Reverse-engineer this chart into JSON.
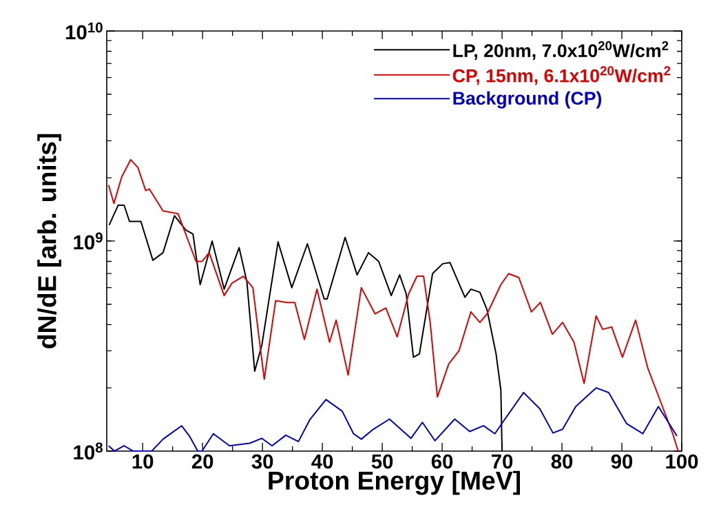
{
  "chart_data": {
    "type": "line",
    "xlabel": "Proton Energy [MeV]",
    "ylabel": "dN/dE [arb. units]",
    "xlim": [
      4,
      100
    ],
    "ylim": [
      100000000,
      10000000000
    ],
    "log": "y",
    "xticks": [
      10,
      20,
      30,
      40,
      50,
      60,
      70,
      80,
      90,
      100
    ],
    "yticks": [
      {
        "value": 100000000,
        "label": "10$^{8}$"
      },
      {
        "value": 1000000000,
        "label": "10$^{9}$"
      },
      {
        "value": 10000000000,
        "label": "10$^{10}$"
      }
    ],
    "legend": "top right",
    "marker": "none",
    "line_style": "solid",
    "series": [
      {
        "name": "LP, 20nm, 7.0x10$^{20}$W/cm$^{2}$",
        "color": "#000000",
        "x": [
          4.4,
          5.9,
          6.9,
          7.8,
          9.7,
          11.7,
          13.4,
          15.3,
          17.2,
          18.4,
          19.6,
          21.6,
          23.6,
          26.1,
          27.4,
          28.7,
          29.9,
          32.6,
          34.9,
          37.5,
          40.3,
          40.8,
          43.8,
          45.8,
          47.7,
          49.4,
          51.5,
          52.9,
          54.0,
          55.2,
          56.2,
          57.3,
          58.4,
          60.1,
          61.3,
          63.8,
          64.8,
          66.3,
          67.5,
          69.0,
          69.8,
          70.0
        ],
        "values": [
          1190000000.0,
          1480000000.0,
          1480000000.0,
          1240000000.0,
          1240000000.0,
          810000000.0,
          880000000.0,
          1320000000.0,
          1130000000.0,
          1080000000.0,
          620000000.0,
          1000000000.0,
          590000000.0,
          930000000.0,
          640000000.0,
          240000000.0,
          320000000.0,
          990000000.0,
          600000000.0,
          970000000.0,
          530000000.0,
          530000000.0,
          1040000000.0,
          690000000.0,
          880000000.0,
          800000000.0,
          550000000.0,
          690000000.0,
          560000000.0,
          280000000.0,
          290000000.0,
          450000000.0,
          700000000.0,
          780000000.0,
          790000000.0,
          540000000.0,
          590000000.0,
          570000000.0,
          470000000.0,
          290000000.0,
          195000000.0,
          100000000.0
        ]
      },
      {
        "name": "CP, 15nm, 6.1x10$^{20}$W/cm$^{2}$",
        "color": "#e00000",
        "x": [
          4.3,
          5.2,
          6.5,
          8.0,
          9.2,
          10.5,
          11.1,
          13.4,
          15.9,
          18.9,
          19.9,
          21.1,
          23.6,
          24.9,
          26.8,
          28.4,
          29.3,
          30.3,
          32.2,
          34.1,
          35.4,
          37.0,
          39.1,
          41.2,
          42.3,
          44.3,
          46.5,
          48.8,
          50.6,
          52.5,
          54.4,
          55.8,
          56.9,
          58.0,
          59.2,
          61.1,
          62.8,
          64.8,
          66.3,
          67.5,
          69.8,
          71.1,
          72.8,
          74.9,
          76.4,
          78.4,
          80.1,
          82.0,
          83.7,
          85.7,
          86.8,
          88.3,
          90.1,
          92.3,
          94.3,
          96.6,
          98.5,
          99.4
        ],
        "values": [
          1850000000.0,
          1510000000.0,
          2020000000.0,
          2440000000.0,
          2240000000.0,
          1740000000.0,
          1770000000.0,
          1390000000.0,
          1350000000.0,
          800000000.0,
          800000000.0,
          880000000.0,
          550000000.0,
          630000000.0,
          680000000.0,
          600000000.0,
          370000000.0,
          220000000.0,
          520000000.0,
          510000000.0,
          510000000.0,
          340000000.0,
          590000000.0,
          330000000.0,
          420000000.0,
          230000000.0,
          600000000.0,
          450000000.0,
          480000000.0,
          350000000.0,
          560000000.0,
          680000000.0,
          680000000.0,
          410000000.0,
          181000000.0,
          260000000.0,
          300000000.0,
          460000000.0,
          410000000.0,
          450000000.0,
          620000000.0,
          700000000.0,
          670000000.0,
          460000000.0,
          510000000.0,
          360000000.0,
          410000000.0,
          330000000.0,
          210000000.0,
          440000000.0,
          380000000.0,
          390000000.0,
          280000000.0,
          420000000.0,
          250000000.0,
          168000000.0,
          121000000.0,
          100000000.0
        ]
      },
      {
        "name": "Background (CP)",
        "color": "#0000cc",
        "x": [
          4.3,
          5.3,
          6.9,
          8.4,
          11.5,
          13.4,
          16.5,
          17.8,
          19.2,
          19.9,
          21.8,
          24.5,
          27.9,
          29.9,
          31.6,
          33.9,
          36.0,
          37.9,
          40.6,
          43.3,
          45.2,
          46.5,
          48.5,
          51.2,
          54.8,
          56.7,
          58.8,
          62.1,
          64.6,
          66.9,
          68.8,
          70.1,
          73.6,
          76.3,
          78.5,
          80.1,
          82.3,
          85.7,
          87.8,
          90.8,
          93.5,
          96.1,
          99.2
        ],
        "values": [
          106000000.0,
          100000000.0,
          106000000.0,
          100000000.0,
          100000000.0,
          114000000.0,
          132000000.0,
          118000000.0,
          100000000.0,
          100000000.0,
          121000000.0,
          106000000.0,
          109000000.0,
          115000000.0,
          106000000.0,
          119000000.0,
          111000000.0,
          141000000.0,
          176000000.0,
          155000000.0,
          121000000.0,
          114000000.0,
          127000000.0,
          142000000.0,
          115000000.0,
          137000000.0,
          112000000.0,
          142000000.0,
          124000000.0,
          132000000.0,
          121000000.0,
          137000000.0,
          190000000.0,
          159000000.0,
          122000000.0,
          127000000.0,
          163000000.0,
          200000000.0,
          190000000.0,
          135000000.0,
          121000000.0,
          163000000.0,
          118000000.0
        ]
      }
    ]
  }
}
